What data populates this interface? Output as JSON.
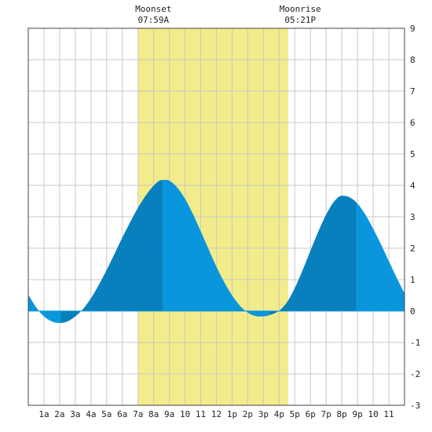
{
  "chart_data": {
    "type": "area",
    "title": "",
    "xlabel": "",
    "ylabel": "",
    "xlim": [
      0,
      24
    ],
    "ylim": [
      -3,
      9
    ],
    "grid": true,
    "x_tick_labels": [
      "1a",
      "2a",
      "3a",
      "4a",
      "5a",
      "6a",
      "7a",
      "8a",
      "9a",
      "10",
      "11",
      "12",
      "1p",
      "2p",
      "3p",
      "4p",
      "5p",
      "6p",
      "7p",
      "8p",
      "9p",
      "10",
      "11"
    ],
    "y_tick_labels": [
      "-3",
      "-2",
      "-1",
      "0",
      "1",
      "2",
      "3",
      "4",
      "5",
      "6",
      "7",
      "8",
      "9"
    ],
    "moon_events": [
      {
        "label": "Moonset",
        "time": "07:59A",
        "hour": 7.983
      },
      {
        "label": "Moonrise",
        "time": "05:21P",
        "hour": 17.35
      }
    ],
    "highlight_range": [
      7.0,
      16.583
    ],
    "tide_extremes": [
      {
        "type": "low",
        "hour": 2.08,
        "height": -0.38
      },
      {
        "type": "high",
        "hour": 8.57,
        "height": 4.18
      },
      {
        "type": "low",
        "hour": 15.35,
        "height": -0.17
      },
      {
        "type": "high",
        "hour": 20.95,
        "height": 3.68
      }
    ],
    "series": [
      {
        "x": [
          0,
          0.5,
          1,
          1.5,
          2,
          2.5,
          3,
          3.5,
          4,
          4.5,
          5,
          5.5,
          6,
          6.5,
          7,
          7.5,
          8,
          8.5,
          9,
          9.5,
          10,
          10.5,
          11,
          11.5,
          12,
          12.5,
          13,
          13.5,
          14,
          14.5,
          15,
          15.5,
          16,
          16.5,
          17,
          17.5,
          18,
          18.5,
          19,
          19.5,
          20,
          20.5,
          21,
          21.5,
          22,
          22.5,
          23,
          23.5,
          24
        ],
        "y": [
          0.52,
          0.12,
          -0.17,
          -0.33,
          -0.38,
          -0.33,
          -0.17,
          0.07,
          0.41,
          0.83,
          1.31,
          1.82,
          2.34,
          2.83,
          3.29,
          3.68,
          3.99,
          4.17,
          4.15,
          3.93,
          3.57,
          3.09,
          2.54,
          1.97,
          1.41,
          0.92,
          0.5,
          0.17,
          -0.05,
          -0.16,
          -0.17,
          -0.11,
          0.01,
          0.28,
          0.73,
          1.3,
          1.92,
          2.53,
          3.07,
          3.48,
          3.67,
          3.62,
          3.42,
          3.07,
          2.62,
          2.12,
          1.59,
          1.06,
          0.56
        ]
      }
    ],
    "colors": {
      "highlight": "#f3ec8a",
      "tide_light": "#0a96dc",
      "tide_dark": "#0880be",
      "grid": "#c8c8c8",
      "border": "#444444"
    }
  }
}
